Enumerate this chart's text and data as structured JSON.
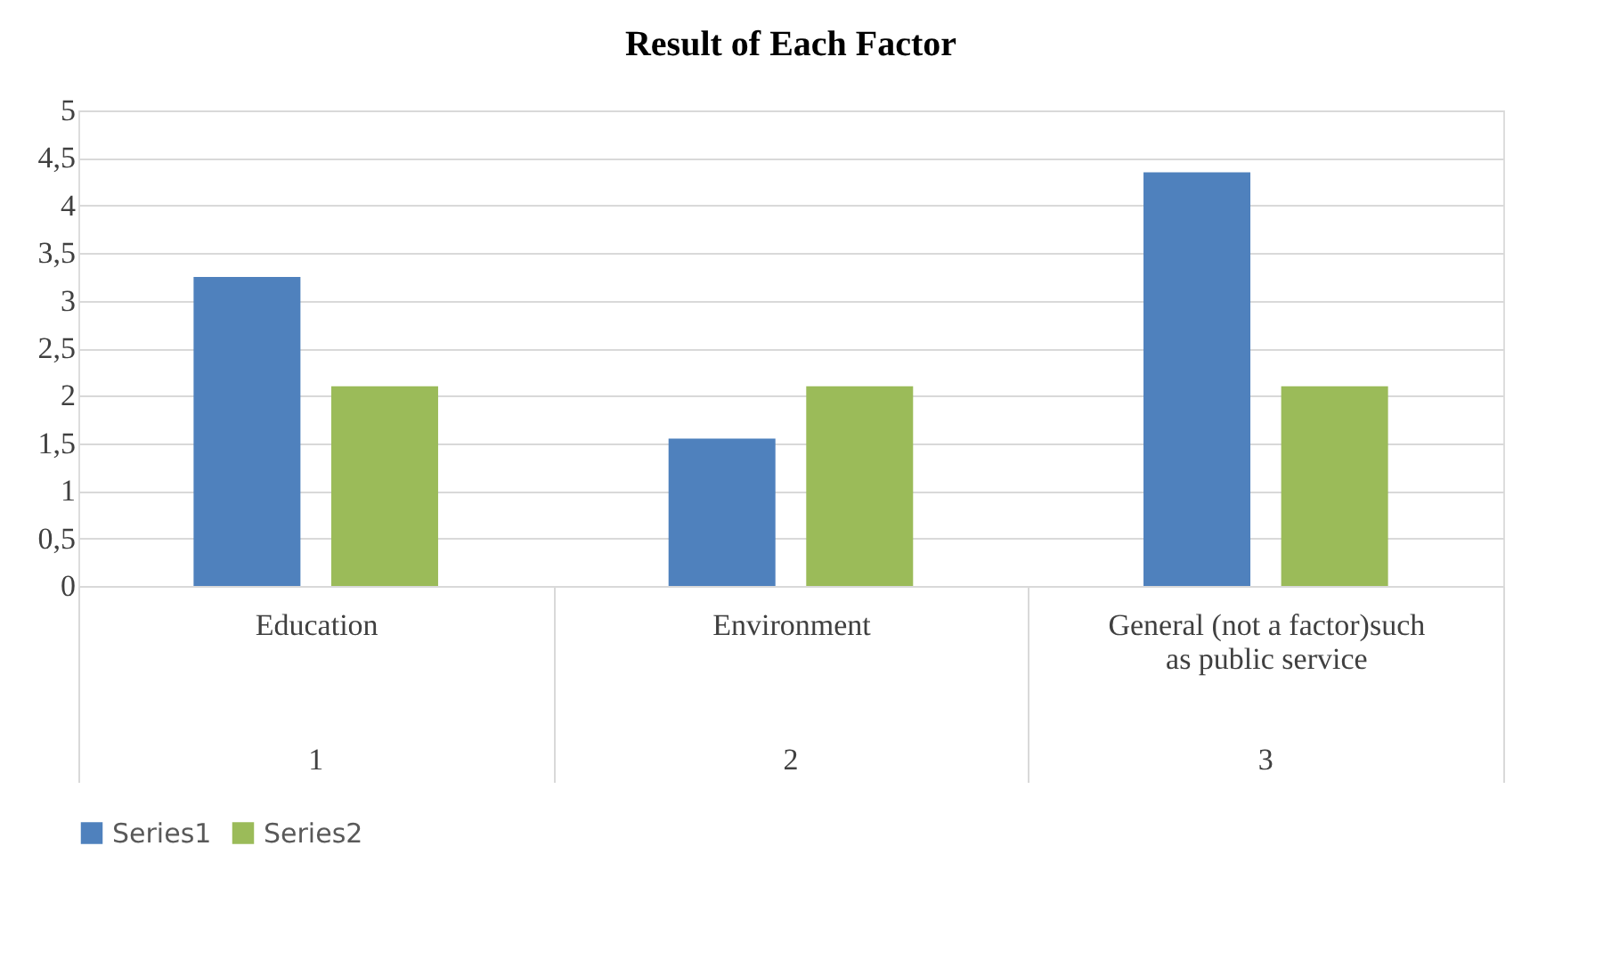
{
  "chart_data": {
    "type": "bar",
    "title": "Result of Each Factor",
    "categories": [
      "Education",
      "Environment",
      "General (not a factor)such as public service"
    ],
    "series": [
      {
        "name": "Series1",
        "color": "#4f81bd",
        "values": [
          3.25,
          1.55,
          4.35
        ]
      },
      {
        "name": "Series2",
        "color": "#9bbb59",
        "values": [
          2.1,
          2.1,
          2.1
        ]
      }
    ],
    "ylim": [
      0,
      5
    ],
    "yticks": [
      0,
      {
        "value": 0.5,
        "label": "0,5"
      },
      1,
      {
        "value": 1.5,
        "label": "1,5"
      },
      2,
      {
        "value": 2.5,
        "label": "2,5"
      },
      3,
      {
        "value": 3.5,
        "label": "3,5"
      },
      4,
      {
        "value": 4.5,
        "label": "4,5"
      },
      5
    ],
    "annotations": [
      "1",
      "2",
      "3"
    ],
    "grid": "y",
    "legend": "bottom"
  }
}
